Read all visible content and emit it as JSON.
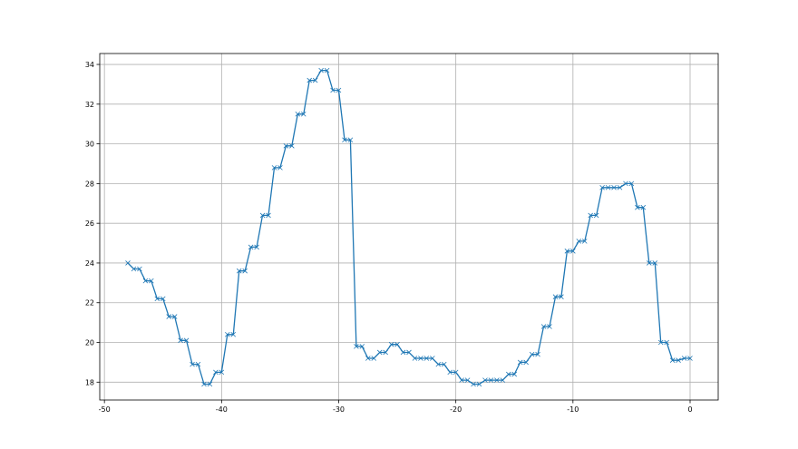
{
  "chart_data": {
    "type": "line",
    "title": "",
    "xlabel": "",
    "ylabel": "",
    "xlim": [
      -50.4,
      2.4
    ],
    "ylim": [
      17.1,
      34.55
    ],
    "xticks": [
      -50,
      -40,
      -30,
      -20,
      -10,
      0
    ],
    "yticks": [
      18,
      20,
      22,
      24,
      26,
      28,
      30,
      32,
      34
    ],
    "grid": true,
    "marker": "x",
    "color": "#1f77b4",
    "series": [
      {
        "x": [
          -48,
          -47.5,
          -47,
          -46.5,
          -46,
          -45.5,
          -45,
          -44.5,
          -44,
          -43.5,
          -43,
          -42.5,
          -42,
          -41.5,
          -41,
          -40.5,
          -40,
          -39.5,
          -39,
          -38.5,
          -38,
          -37.5,
          -37,
          -36.5,
          -36,
          -35.5,
          -35,
          -34.5,
          -34,
          -33.5,
          -33,
          -32.5,
          -32,
          -31.5,
          -31,
          -30.5,
          -30,
          -29.5,
          -29,
          -28.5,
          -28,
          -27.5,
          -27,
          -26.5,
          -26,
          -25.5,
          -25,
          -24.5,
          -24,
          -23.5,
          -23,
          -22.5,
          -22,
          -21.5,
          -21,
          -20.5,
          -20,
          -19.5,
          -19,
          -18.5,
          -18,
          -17.5,
          -17,
          -16.5,
          -16,
          -15.5,
          -15,
          -14.5,
          -14,
          -13.5,
          -13,
          -12.5,
          -12,
          -11.5,
          -11,
          -10.5,
          -10,
          -9.5,
          -9,
          -8.5,
          -8,
          -7.5,
          -7,
          -6.5,
          -6,
          -5.5,
          -5,
          -4.5,
          -4,
          -3.5,
          -3,
          -2.5,
          -2,
          -1.5,
          -1,
          -0.5,
          0
        ],
        "y": [
          24.0,
          23.7,
          23.7,
          23.1,
          23.1,
          22.2,
          22.2,
          21.3,
          21.3,
          20.1,
          20.1,
          18.9,
          18.9,
          17.9,
          17.9,
          18.5,
          18.5,
          20.4,
          20.4,
          23.6,
          23.6,
          24.8,
          24.8,
          26.4,
          26.4,
          28.8,
          28.8,
          29.9,
          29.9,
          31.5,
          31.5,
          33.2,
          33.2,
          33.7,
          33.7,
          32.7,
          32.7,
          30.2,
          30.2,
          19.8,
          19.8,
          19.2,
          19.2,
          19.5,
          19.5,
          19.9,
          19.9,
          19.5,
          19.5,
          19.2,
          19.2,
          19.2,
          19.2,
          18.9,
          18.9,
          18.5,
          18.5,
          18.1,
          18.1,
          17.9,
          17.9,
          18.1,
          18.1,
          18.1,
          18.1,
          18.4,
          18.4,
          19.0,
          19.0,
          19.4,
          19.4,
          20.8,
          20.8,
          22.3,
          22.3,
          24.6,
          24.6,
          25.1,
          25.1,
          26.4,
          26.4,
          27.8,
          27.8,
          27.8,
          27.8,
          28.0,
          28.0,
          26.8,
          26.8,
          24.0,
          24.0,
          20.0,
          20.0,
          19.1,
          19.1,
          19.2,
          19.2
        ]
      }
    ]
  }
}
